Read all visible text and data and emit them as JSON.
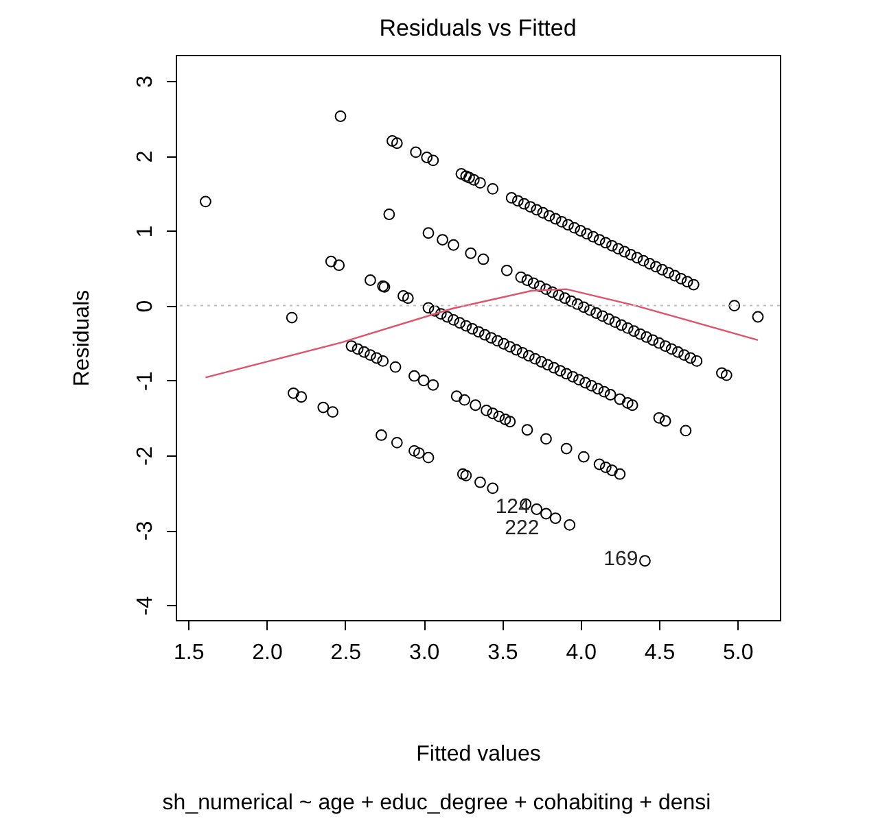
{
  "chart_data": {
    "type": "scatter",
    "title": "Residuals vs Fitted",
    "xlabel": "Fitted values",
    "ylabel": "Residuals",
    "xlim": [
      1.42,
      5.27
    ],
    "ylim": [
      -4.2,
      3.35
    ],
    "xticks": [
      1.5,
      {
        "value": 2,
        "label": "2.0"
      },
      2.5,
      {
        "value": 3,
        "label": "3.0"
      },
      3.5,
      {
        "value": 4,
        "label": "4.0"
      },
      4.5,
      {
        "value": 5,
        "label": "5.0"
      }
    ],
    "yticks": [
      -4,
      -3,
      -2,
      -1,
      0,
      1,
      2,
      3
    ],
    "grid": false,
    "series": [
      {
        "color": "#000000",
        "marker": "circle",
        "x": [
          2.47,
          2.8,
          2.83,
          2.95,
          3.02,
          3.06,
          3.24,
          3.27,
          3.29,
          3.32,
          3.36,
          3.44,
          3.56,
          3.6,
          3.64,
          3.68,
          3.72,
          3.76,
          3.8,
          3.84,
          3.88,
          3.92,
          3.96,
          4.0,
          4.04,
          4.08,
          4.12,
          4.16,
          4.2,
          4.24,
          4.28,
          4.32,
          4.36,
          4.4,
          4.44,
          4.48,
          4.52,
          4.56,
          4.6,
          4.64,
          4.68,
          4.72,
          4.98,
          5.13,
          2.78,
          3.03,
          3.12,
          3.19,
          3.3,
          3.38,
          3.53,
          3.62,
          3.66,
          3.7,
          3.74,
          3.78,
          3.82,
          3.86,
          3.9,
          3.94,
          3.98,
          4.02,
          4.06,
          4.1,
          4.14,
          4.18,
          4.22,
          4.26,
          4.3,
          4.34,
          4.38,
          4.42,
          4.46,
          4.5,
          4.54,
          4.58,
          4.62,
          4.66,
          4.7,
          4.74,
          4.9,
          4.93,
          1.61,
          2.41,
          2.46,
          2.66,
          2.74,
          2.75,
          2.87,
          2.9,
          3.03,
          3.07,
          3.11,
          3.15,
          3.19,
          3.23,
          3.27,
          3.31,
          3.35,
          3.39,
          3.43,
          3.47,
          3.51,
          3.55,
          3.59,
          3.63,
          3.67,
          3.71,
          3.75,
          3.79,
          3.83,
          3.87,
          3.91,
          3.95,
          3.99,
          4.03,
          4.07,
          4.11,
          4.15,
          4.19,
          4.25,
          4.3,
          4.33,
          4.5,
          4.54,
          4.67,
          2.16,
          2.54,
          2.58,
          2.62,
          2.66,
          2.7,
          2.74,
          2.82,
          2.94,
          3.0,
          3.06,
          3.21,
          3.26,
          3.33,
          3.4,
          3.44,
          3.48,
          3.52,
          3.55,
          3.66,
          3.78,
          3.91,
          4.02,
          4.12,
          4.16,
          4.2,
          4.25,
          2.17,
          2.22,
          2.36,
          2.42,
          2.73,
          2.83,
          2.94,
          2.97,
          3.03,
          3.25,
          3.27,
          3.36,
          3.44,
          3.65,
          3.72,
          3.78,
          3.84,
          3.93,
          4.41
        ],
        "values": [
          2.53,
          2.2,
          2.17,
          2.05,
          1.98,
          1.94,
          1.76,
          1.73,
          1.71,
          1.68,
          1.64,
          1.56,
          1.44,
          1.4,
          1.36,
          1.32,
          1.28,
          1.24,
          1.2,
          1.16,
          1.12,
          1.08,
          1.04,
          1.0,
          0.96,
          0.92,
          0.88,
          0.84,
          0.8,
          0.76,
          0.72,
          0.68,
          0.64,
          0.6,
          0.56,
          0.52,
          0.48,
          0.44,
          0.4,
          0.36,
          0.32,
          0.28,
          0.0,
          -0.15,
          1.22,
          0.97,
          0.88,
          0.81,
          0.7,
          0.62,
          0.47,
          0.38,
          0.34,
          0.3,
          0.26,
          0.22,
          0.18,
          0.14,
          0.1,
          0.06,
          0.02,
          -0.02,
          -0.06,
          -0.1,
          -0.14,
          -0.18,
          -0.22,
          -0.26,
          -0.3,
          -0.34,
          -0.38,
          -0.42,
          -0.46,
          -0.5,
          -0.54,
          -0.58,
          -0.62,
          -0.66,
          -0.7,
          -0.74,
          -0.9,
          -0.93,
          1.39,
          0.59,
          0.54,
          0.34,
          0.26,
          0.25,
          0.13,
          0.1,
          -0.03,
          -0.07,
          -0.11,
          -0.15,
          -0.19,
          -0.23,
          -0.27,
          -0.31,
          -0.35,
          -0.39,
          -0.43,
          -0.47,
          -0.51,
          -0.55,
          -0.59,
          -0.63,
          -0.67,
          -0.71,
          -0.75,
          -0.79,
          -0.83,
          -0.87,
          -0.91,
          -0.95,
          -0.99,
          -1.03,
          -1.07,
          -1.11,
          -1.15,
          -1.19,
          -1.25,
          -1.3,
          -1.33,
          -1.5,
          -1.54,
          -1.67,
          -0.16,
          -0.54,
          -0.58,
          -0.62,
          -0.66,
          -0.7,
          -0.74,
          -0.82,
          -0.94,
          -1.0,
          -1.06,
          -1.21,
          -1.26,
          -1.33,
          -1.4,
          -1.44,
          -1.48,
          -1.52,
          -1.55,
          -1.66,
          -1.78,
          -1.91,
          -2.02,
          -2.12,
          -2.16,
          -2.2,
          -2.25,
          -1.17,
          -1.22,
          -1.36,
          -1.42,
          -1.73,
          -1.83,
          -1.94,
          -1.97,
          -2.03,
          -2.25,
          -2.27,
          -2.36,
          -2.44,
          -2.65,
          -2.72,
          -2.78,
          -2.84,
          -2.93,
          -3.41
        ]
      },
      {
        "type": "line",
        "color": "#df536b",
        "marker": "none",
        "x": [
          1.61,
          2.48,
          3.18,
          3.69,
          3.91,
          4.35,
          5.13
        ],
        "values": [
          -0.96,
          -0.49,
          -0.04,
          0.2,
          0.22,
          0.0,
          -0.46
        ]
      }
    ],
    "ref_lines": [
      {
        "axis": "y",
        "value": 0,
        "color": "#bebebe",
        "line_style": "dotted"
      }
    ],
    "annotations": [
      {
        "text": "124",
        "x": 3.72,
        "y": -2.72
      },
      {
        "text": "222",
        "x": 3.78,
        "y": -2.78
      },
      {
        "text": "169",
        "x": 4.41,
        "y": -3.41
      },
      "sh_numerical ~ age + educ_degree + cohabiting + densi"
    ]
  }
}
